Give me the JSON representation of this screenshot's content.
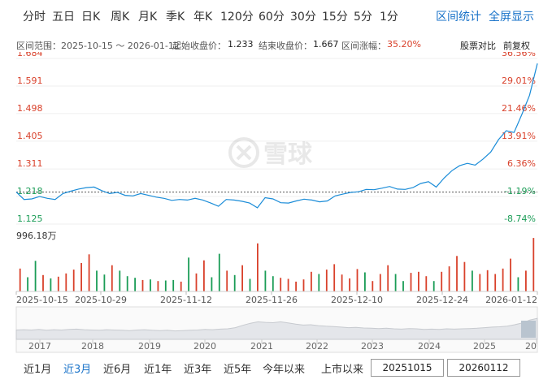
{
  "top_tabs": [
    "分时",
    "五日",
    "日K",
    "周K",
    "月K",
    "季K",
    "年K",
    "120分",
    "60分",
    "30分",
    "15分",
    "5分",
    "1分"
  ],
  "top_links": {
    "stats": "区间统计",
    "fullscreen": "全屏显示"
  },
  "info": {
    "range_label": "区间范围：2025-10-15 ～ 2026-01-12",
    "start_label": "起始收盘价：",
    "start_value": "1.233",
    "end_label": "结束收盘价：",
    "end_value": "1.667",
    "change_label": "区间涨幅：",
    "change_value": "35.20%",
    "compare": "股票对比",
    "adjust": "前复权"
  },
  "watermark": "雪球",
  "y_labels": [
    "1.684",
    "1.591",
    "1.498",
    "1.405",
    "1.311",
    "1.218",
    "1.125"
  ],
  "pct_labels": [
    "36.56%",
    "29.01%",
    "21.46%",
    "13.91%",
    "6.36%",
    "-1.19%",
    "-8.74%"
  ],
  "volume_max_label": "996.18万",
  "x_labels": [
    "2025-10-15",
    "2025-10-29",
    "2025-11-12",
    "2025-11-26",
    "2025-12-10",
    "2025-12-24",
    "2026-01-12"
  ],
  "nav_years": [
    "2017",
    "2018",
    "2019",
    "2020",
    "2021",
    "2022",
    "2023",
    "2024",
    "2025",
    "20"
  ],
  "range_buttons": [
    "近1月",
    "近3月",
    "近6月",
    "近1年",
    "近3年",
    "近5年",
    "今年以来",
    "上市以来"
  ],
  "active_range": "近3月",
  "date_inputs": {
    "start": "20251015",
    "end": "20260112"
  },
  "colors": {
    "line": "#1a8cd8",
    "up": "#d9412b",
    "down": "#1a9c56",
    "accent": "#1a73c9"
  },
  "chart_data": {
    "type": "line",
    "ylim": [
      1.125,
      1.684
    ],
    "pct_ylim": [
      -8.74,
      36.56
    ],
    "x_range": [
      "2025-10-15",
      "2026-01-12"
    ],
    "series": [
      {
        "values": [
          1.233,
          1.208,
          1.21,
          1.218,
          1.212,
          1.208,
          1.228,
          1.236,
          1.243,
          1.248,
          1.25,
          1.238,
          1.228,
          1.232,
          1.222,
          1.22,
          1.228,
          1.222,
          1.216,
          1.212,
          1.205,
          1.208,
          1.206,
          1.212,
          1.206,
          1.196,
          1.185,
          1.208,
          1.206,
          1.202,
          1.196,
          1.18,
          1.214,
          1.21,
          1.197,
          1.196,
          1.203,
          1.209,
          1.206,
          1.2,
          1.203,
          1.22,
          1.226,
          1.232,
          1.234,
          1.242,
          1.241,
          1.246,
          1.252,
          1.243,
          1.242,
          1.248,
          1.262,
          1.268,
          1.25,
          1.28,
          1.305,
          1.322,
          1.33,
          1.324,
          1.344,
          1.368,
          1.41,
          1.44,
          1.434,
          1.495,
          1.56,
          1.667
        ]
      }
    ],
    "volume": {
      "max": 996.18,
      "unit": "万",
      "values": [
        420,
        260,
        560,
        300,
        240,
        270,
        330,
        400,
        520,
        680,
        380,
        310,
        480,
        380,
        280,
        250,
        210,
        220,
        190,
        200,
        210,
        180,
        620,
        330,
        570,
        260,
        690,
        380,
        300,
        480,
        230,
        880,
        380,
        280,
        250,
        230,
        180,
        220,
        360,
        320,
        400,
        500,
        310,
        240,
        410,
        350,
        190,
        320,
        480,
        320,
        190,
        340,
        360,
        280,
        190,
        360,
        460,
        650,
        540,
        380,
        320,
        390,
        320,
        420,
        600,
        260,
        380,
        980
      ],
      "up": [
        true,
        false,
        false,
        true,
        false,
        true,
        true,
        true,
        true,
        true,
        false,
        false,
        true,
        false,
        false,
        false,
        true,
        false,
        true,
        false,
        false,
        true,
        false,
        true,
        true,
        false,
        false,
        true,
        false,
        true,
        false,
        true,
        false,
        false,
        true,
        true,
        true,
        true,
        true,
        false,
        true,
        true,
        true,
        true,
        true,
        false,
        true,
        true,
        true,
        false,
        false,
        true,
        true,
        true,
        false,
        true,
        true,
        true,
        true,
        false,
        true,
        true,
        true,
        true,
        true,
        false,
        true,
        true
      ]
    }
  },
  "navigator": {
    "values": [
      0.32,
      0.33,
      0.32,
      0.34,
      0.31,
      0.33,
      0.32,
      0.34,
      0.35,
      0.33,
      0.32,
      0.31,
      0.33,
      0.32,
      0.31,
      0.3,
      0.32,
      0.33,
      0.31,
      0.3,
      0.31,
      0.29,
      0.3,
      0.31,
      0.32,
      0.34,
      0.33,
      0.35,
      0.36,
      0.4,
      0.48,
      0.55,
      0.6,
      0.58,
      0.57,
      0.6,
      0.56,
      0.52,
      0.49,
      0.5,
      0.47,
      0.45,
      0.44,
      0.42,
      0.4,
      0.41,
      0.39,
      0.38,
      0.37,
      0.38,
      0.36,
      0.35,
      0.37,
      0.36,
      0.34,
      0.35,
      0.34,
      0.36,
      0.35,
      0.36,
      0.37,
      0.38,
      0.4,
      0.42,
      0.43,
      0.45,
      0.5,
      0.56,
      0.66,
      0.72
    ]
  }
}
